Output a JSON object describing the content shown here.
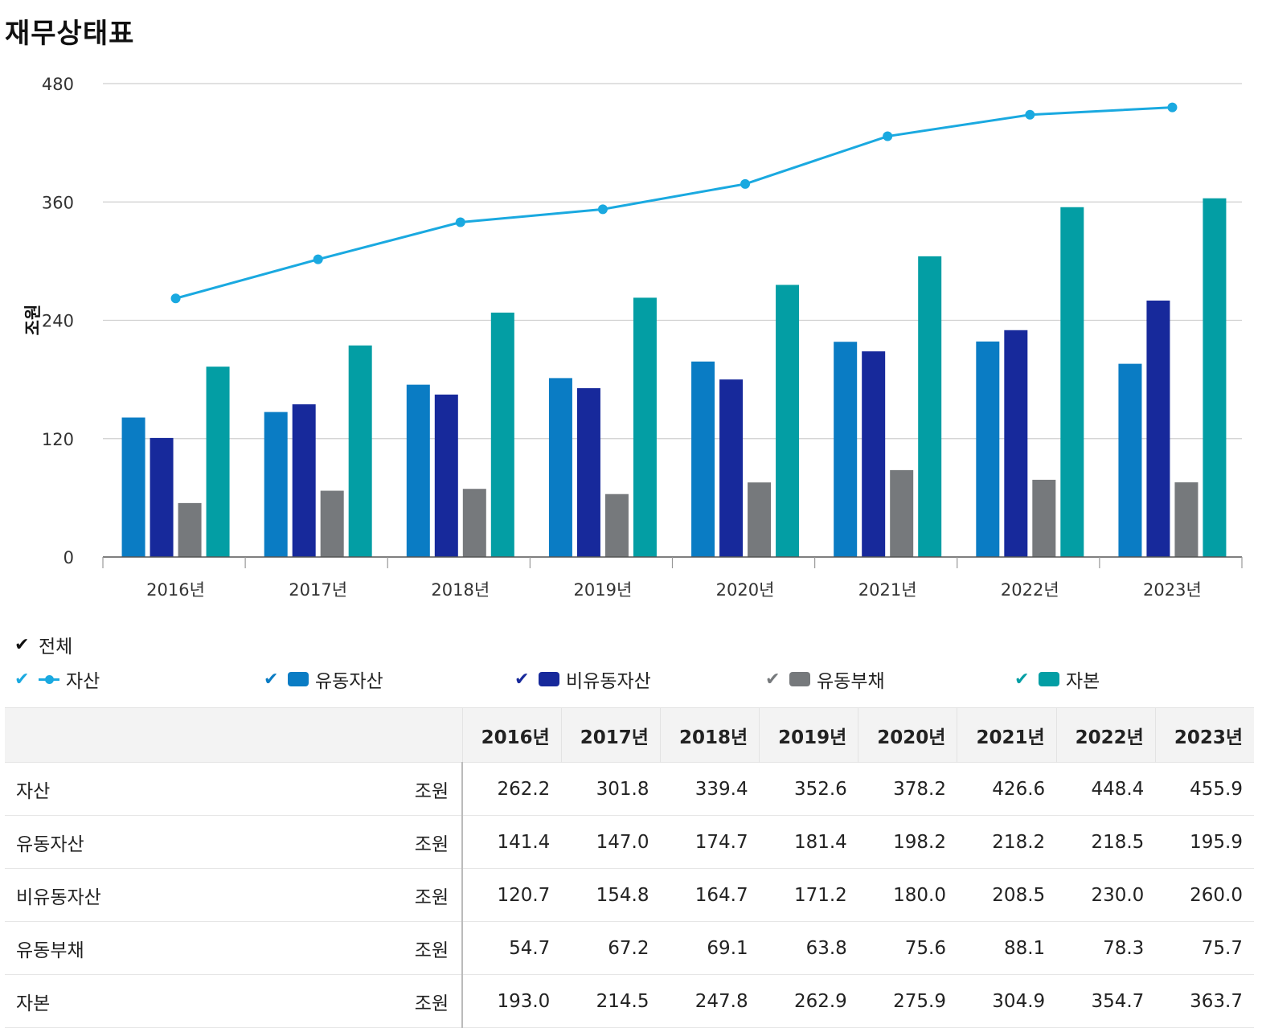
{
  "page": {
    "title": "재무상태표"
  },
  "legend": {
    "all_label": "전체",
    "check_glyph": "✔",
    "items": [
      {
        "label": "자산",
        "color": "#1aa9e0",
        "kind": "line"
      },
      {
        "label": "유동자산",
        "color": "#0a7cc4",
        "kind": "bar"
      },
      {
        "label": "비유동자산",
        "color": "#17299b",
        "kind": "bar"
      },
      {
        "label": "유동부채",
        "color": "#76797c",
        "kind": "bar"
      },
      {
        "label": "자본",
        "color": "#039ea4",
        "kind": "bar"
      }
    ]
  },
  "table": {
    "years": [
      "2016년",
      "2017년",
      "2018년",
      "2019년",
      "2020년",
      "2021년",
      "2022년",
      "2023년"
    ],
    "rows": [
      {
        "name": "자산",
        "unit": "조원",
        "values": [
          "262.2",
          "301.8",
          "339.4",
          "352.6",
          "378.2",
          "426.6",
          "448.4",
          "455.9"
        ]
      },
      {
        "name": "유동자산",
        "unit": "조원",
        "values": [
          "141.4",
          "147.0",
          "174.7",
          "181.4",
          "198.2",
          "218.2",
          "218.5",
          "195.9"
        ]
      },
      {
        "name": "비유동자산",
        "unit": "조원",
        "values": [
          "120.7",
          "154.8",
          "164.7",
          "171.2",
          "180.0",
          "208.5",
          "230.0",
          "260.0"
        ]
      },
      {
        "name": "유동부채",
        "unit": "조원",
        "values": [
          "54.7",
          "67.2",
          "69.1",
          "63.8",
          "75.6",
          "88.1",
          "78.3",
          "75.7"
        ]
      },
      {
        "name": "자본",
        "unit": "조원",
        "values": [
          "193.0",
          "214.5",
          "247.8",
          "262.9",
          "275.9",
          "304.9",
          "354.7",
          "363.7"
        ]
      }
    ]
  },
  "chart_data": {
    "type": "bar",
    "title": "재무상태표",
    "xlabel": "",
    "ylabel": "조원",
    "ylim": [
      0,
      480
    ],
    "yticks": [
      0,
      120,
      240,
      360,
      480
    ],
    "grid": true,
    "categories": [
      "2016년",
      "2017년",
      "2018년",
      "2019년",
      "2020년",
      "2021년",
      "2022년",
      "2023년"
    ],
    "series": [
      {
        "name": "자산",
        "type": "line",
        "color": "#1aa9e0",
        "values": [
          262.2,
          301.8,
          339.4,
          352.6,
          378.2,
          426.6,
          448.4,
          455.9
        ]
      },
      {
        "name": "유동자산",
        "type": "bar",
        "color": "#0a7cc4",
        "values": [
          141.4,
          147.0,
          174.7,
          181.4,
          198.2,
          218.2,
          218.5,
          195.9
        ]
      },
      {
        "name": "비유동자산",
        "type": "bar",
        "color": "#17299b",
        "values": [
          120.7,
          154.8,
          164.7,
          171.2,
          180.0,
          208.5,
          230.0,
          260.0
        ]
      },
      {
        "name": "유동부채",
        "type": "bar",
        "color": "#76797c",
        "values": [
          54.7,
          67.2,
          69.1,
          63.8,
          75.6,
          88.1,
          78.3,
          75.7
        ]
      },
      {
        "name": "자본",
        "type": "bar",
        "color": "#039ea4",
        "values": [
          193.0,
          214.5,
          247.8,
          262.9,
          275.9,
          304.9,
          354.7,
          363.7
        ]
      }
    ]
  }
}
